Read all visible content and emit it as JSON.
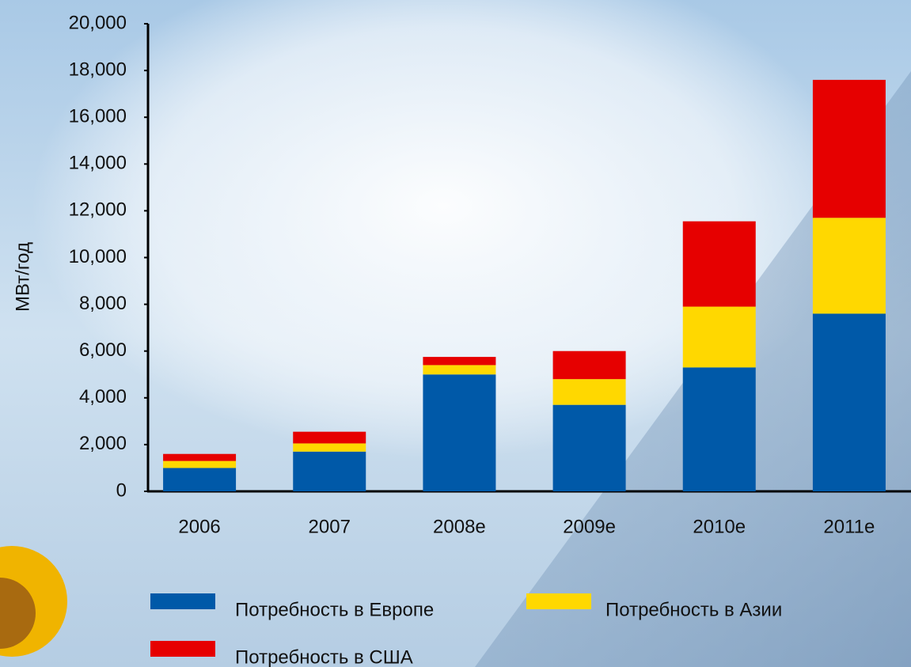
{
  "chart_data": {
    "type": "stacked-bar",
    "y_label": "МВт/год",
    "categories": [
      "2006",
      "2007",
      "2008e",
      "2009e",
      "2010e",
      "2011e"
    ],
    "series": [
      {
        "name": "Потребность в Европе",
        "color": "#0059a8",
        "values": [
          1000,
          1700,
          5000,
          3700,
          5300,
          7600
        ]
      },
      {
        "name": "Потребность в Азии",
        "color": "#ffd800",
        "values": [
          300,
          350,
          400,
          1100,
          2600,
          4100
        ]
      },
      {
        "name": "Потребность в США",
        "color": "#e60000",
        "values": [
          300,
          500,
          350,
          1200,
          3650,
          5900
        ]
      }
    ],
    "ylim": [
      0,
      20000
    ],
    "yticks": [
      0,
      {
        "value": 2000,
        "label": "2,000"
      },
      {
        "value": 4000,
        "label": "4,000"
      },
      {
        "value": 6000,
        "label": "6,000"
      },
      {
        "value": 8000,
        "label": "8,000"
      },
      {
        "value": 10000,
        "label": "10,000"
      },
      {
        "value": 12000,
        "label": "12,000"
      },
      {
        "value": 14000,
        "label": "14,000"
      },
      {
        "value": 16000,
        "label": "16,000"
      },
      {
        "value": 18000,
        "label": "18,000"
      },
      {
        "value": 20000,
        "label": "20,000"
      }
    ]
  }
}
